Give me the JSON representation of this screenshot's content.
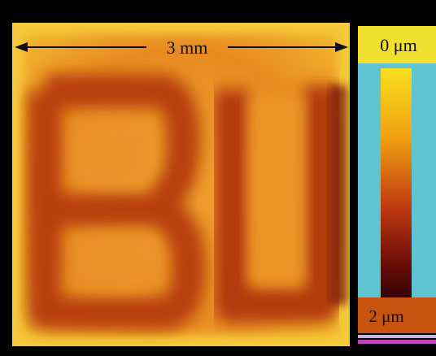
{
  "scale_bar": {
    "label": "3 mm"
  },
  "colorbar": {
    "top_label": "0 μm",
    "bottom_label": "2 μm"
  }
}
